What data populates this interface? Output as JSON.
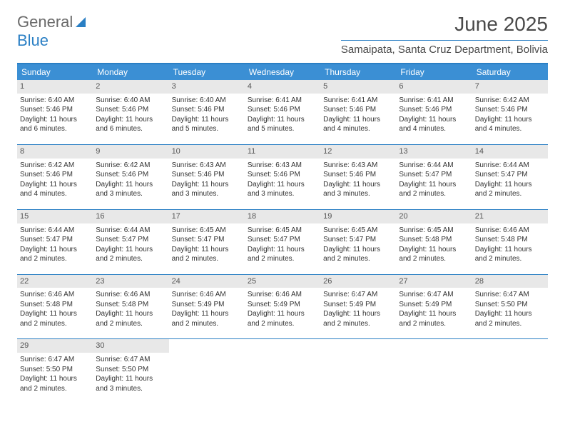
{
  "brand": {
    "word1": "General",
    "word2": "Blue"
  },
  "title": "June 2025",
  "location": "Samaipata, Santa Cruz Department, Bolivia",
  "colors": {
    "header_bg": "#3b8fd4",
    "accent": "#2a7fc4",
    "daynum_bg": "#e8e8e8",
    "text": "#333333",
    "title_text": "#4a4a4a"
  },
  "day_names": [
    "Sunday",
    "Monday",
    "Tuesday",
    "Wednesday",
    "Thursday",
    "Friday",
    "Saturday"
  ],
  "weeks": [
    [
      {
        "n": "1",
        "sr": "6:40 AM",
        "ss": "5:46 PM",
        "dl": "11 hours and 6 minutes."
      },
      {
        "n": "2",
        "sr": "6:40 AM",
        "ss": "5:46 PM",
        "dl": "11 hours and 6 minutes."
      },
      {
        "n": "3",
        "sr": "6:40 AM",
        "ss": "5:46 PM",
        "dl": "11 hours and 5 minutes."
      },
      {
        "n": "4",
        "sr": "6:41 AM",
        "ss": "5:46 PM",
        "dl": "11 hours and 5 minutes."
      },
      {
        "n": "5",
        "sr": "6:41 AM",
        "ss": "5:46 PM",
        "dl": "11 hours and 4 minutes."
      },
      {
        "n": "6",
        "sr": "6:41 AM",
        "ss": "5:46 PM",
        "dl": "11 hours and 4 minutes."
      },
      {
        "n": "7",
        "sr": "6:42 AM",
        "ss": "5:46 PM",
        "dl": "11 hours and 4 minutes."
      }
    ],
    [
      {
        "n": "8",
        "sr": "6:42 AM",
        "ss": "5:46 PM",
        "dl": "11 hours and 4 minutes."
      },
      {
        "n": "9",
        "sr": "6:42 AM",
        "ss": "5:46 PM",
        "dl": "11 hours and 3 minutes."
      },
      {
        "n": "10",
        "sr": "6:43 AM",
        "ss": "5:46 PM",
        "dl": "11 hours and 3 minutes."
      },
      {
        "n": "11",
        "sr": "6:43 AM",
        "ss": "5:46 PM",
        "dl": "11 hours and 3 minutes."
      },
      {
        "n": "12",
        "sr": "6:43 AM",
        "ss": "5:46 PM",
        "dl": "11 hours and 3 minutes."
      },
      {
        "n": "13",
        "sr": "6:44 AM",
        "ss": "5:47 PM",
        "dl": "11 hours and 2 minutes."
      },
      {
        "n": "14",
        "sr": "6:44 AM",
        "ss": "5:47 PM",
        "dl": "11 hours and 2 minutes."
      }
    ],
    [
      {
        "n": "15",
        "sr": "6:44 AM",
        "ss": "5:47 PM",
        "dl": "11 hours and 2 minutes."
      },
      {
        "n": "16",
        "sr": "6:44 AM",
        "ss": "5:47 PM",
        "dl": "11 hours and 2 minutes."
      },
      {
        "n": "17",
        "sr": "6:45 AM",
        "ss": "5:47 PM",
        "dl": "11 hours and 2 minutes."
      },
      {
        "n": "18",
        "sr": "6:45 AM",
        "ss": "5:47 PM",
        "dl": "11 hours and 2 minutes."
      },
      {
        "n": "19",
        "sr": "6:45 AM",
        "ss": "5:47 PM",
        "dl": "11 hours and 2 minutes."
      },
      {
        "n": "20",
        "sr": "6:45 AM",
        "ss": "5:48 PM",
        "dl": "11 hours and 2 minutes."
      },
      {
        "n": "21",
        "sr": "6:46 AM",
        "ss": "5:48 PM",
        "dl": "11 hours and 2 minutes."
      }
    ],
    [
      {
        "n": "22",
        "sr": "6:46 AM",
        "ss": "5:48 PM",
        "dl": "11 hours and 2 minutes."
      },
      {
        "n": "23",
        "sr": "6:46 AM",
        "ss": "5:48 PM",
        "dl": "11 hours and 2 minutes."
      },
      {
        "n": "24",
        "sr": "6:46 AM",
        "ss": "5:49 PM",
        "dl": "11 hours and 2 minutes."
      },
      {
        "n": "25",
        "sr": "6:46 AM",
        "ss": "5:49 PM",
        "dl": "11 hours and 2 minutes."
      },
      {
        "n": "26",
        "sr": "6:47 AM",
        "ss": "5:49 PM",
        "dl": "11 hours and 2 minutes."
      },
      {
        "n": "27",
        "sr": "6:47 AM",
        "ss": "5:49 PM",
        "dl": "11 hours and 2 minutes."
      },
      {
        "n": "28",
        "sr": "6:47 AM",
        "ss": "5:50 PM",
        "dl": "11 hours and 2 minutes."
      }
    ],
    [
      {
        "n": "29",
        "sr": "6:47 AM",
        "ss": "5:50 PM",
        "dl": "11 hours and 2 minutes."
      },
      {
        "n": "30",
        "sr": "6:47 AM",
        "ss": "5:50 PM",
        "dl": "11 hours and 3 minutes."
      },
      null,
      null,
      null,
      null,
      null
    ]
  ],
  "labels": {
    "sunrise": "Sunrise:",
    "sunset": "Sunset:",
    "daylight": "Daylight:"
  }
}
